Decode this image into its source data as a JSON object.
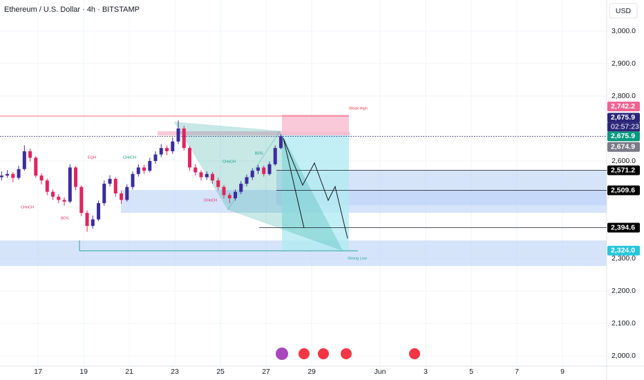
{
  "header": {
    "title": "Ethereum / U.S. Dollar · 4h · BITSTAMP",
    "currency": "USD"
  },
  "chart_data": {
    "type": "candlestick",
    "x": [
      15.4,
      15.65,
      15.9,
      16.15,
      16.4,
      16.65,
      16.9,
      17.15,
      17.4,
      17.65,
      17.9,
      18.15,
      18.4,
      18.65,
      18.9,
      19.15,
      19.4,
      19.65,
      19.9,
      20.15,
      20.4,
      20.65,
      20.9,
      21.15,
      21.4,
      21.65,
      21.9,
      22.15,
      22.4,
      22.65,
      22.9,
      23.15,
      23.4,
      23.65,
      23.9,
      24.15,
      24.4,
      24.65,
      24.9,
      25.15,
      25.4,
      25.65,
      25.9,
      26.15,
      26.4,
      26.65,
      26.9,
      27.15,
      27.4,
      27.65
    ],
    "open": [
      2550,
      2555,
      2560,
      2548,
      2575,
      2630,
      2610,
      2555,
      2540,
      2505,
      2490,
      2480,
      2475,
      2580,
      2520,
      2440,
      2400,
      2420,
      2470,
      2530,
      2545,
      2500,
      2480,
      2520,
      2560,
      2580,
      2570,
      2600,
      2620,
      2640,
      2630,
      2660,
      2700,
      2640,
      2580,
      2565,
      2550,
      2560,
      2540,
      2520,
      2495,
      2485,
      2505,
      2530,
      2550,
      2570,
      2580,
      2560,
      2590,
      2640
    ],
    "high": [
      2568,
      2572,
      2566,
      2585,
      2648,
      2638,
      2615,
      2562,
      2546,
      2512,
      2498,
      2488,
      2590,
      2584,
      2525,
      2448,
      2432,
      2478,
      2540,
      2556,
      2550,
      2508,
      2528,
      2568,
      2590,
      2588,
      2610,
      2630,
      2652,
      2648,
      2672,
      2725,
      2708,
      2646,
      2590,
      2572,
      2568,
      2566,
      2548,
      2526,
      2502,
      2512,
      2538,
      2558,
      2578,
      2588,
      2586,
      2598,
      2648,
      2682
    ],
    "low": [
      2540,
      2548,
      2535,
      2542,
      2570,
      2598,
      2548,
      2528,
      2495,
      2480,
      2470,
      2462,
      2470,
      2510,
      2430,
      2382,
      2392,
      2415,
      2462,
      2522,
      2490,
      2468,
      2475,
      2512,
      2552,
      2560,
      2565,
      2592,
      2612,
      2618,
      2622,
      2652,
      2632,
      2570,
      2555,
      2540,
      2542,
      2530,
      2510,
      2485,
      2470,
      2478,
      2498,
      2522,
      2542,
      2560,
      2552,
      2555,
      2585,
      2636
    ],
    "close": [
      2555,
      2560,
      2548,
      2575,
      2630,
      2610,
      2555,
      2540,
      2505,
      2490,
      2480,
      2475,
      2580,
      2520,
      2440,
      2400,
      2420,
      2470,
      2530,
      2545,
      2500,
      2480,
      2520,
      2560,
      2580,
      2570,
      2600,
      2620,
      2640,
      2630,
      2660,
      2700,
      2640,
      2580,
      2565,
      2550,
      2560,
      2540,
      2520,
      2495,
      2485,
      2505,
      2530,
      2550,
      2570,
      2580,
      2560,
      2590,
      2640,
      2676
    ],
    "up_color": "#3b2c9e",
    "down_color": "#e0245e",
    "xlim": [
      15.33,
      41.94
    ],
    "ylim": [
      1968.1,
      3095.7
    ],
    "xticks": [
      17,
      19,
      21,
      23,
      25,
      27,
      29,
      {
        "value": 32,
        "label": "Jun"
      },
      {
        "value": 34,
        "label": "3"
      },
      {
        "value": 36,
        "label": "5"
      },
      {
        "value": 38,
        "label": "7"
      },
      {
        "value": 40,
        "label": "9"
      }
    ],
    "yticks": [
      {
        "value": 3000,
        "label": "3,000.0"
      },
      {
        "value": 2900,
        "label": "2,900.0"
      },
      {
        "value": 2800,
        "label": "2,800.0"
      },
      {
        "value": 2600,
        "label": "2,600.0"
      },
      {
        "value": 2300,
        "label": "2,300.0"
      },
      {
        "value": 2200,
        "label": "2,200.0"
      },
      {
        "value": 2100,
        "label": "2,100.0"
      },
      {
        "value": 2000,
        "label": "2,000.0"
      }
    ],
    "grid": true,
    "price_labels": [
      {
        "value": 2742.2,
        "label": "2,742.2",
        "color": "#f06292"
      },
      {
        "value": 2675.9,
        "label": "2,675.9",
        "color": "#2a2577"
      },
      {
        "value": 2675.9,
        "label": "2,675.9",
        "color": "#089981"
      },
      {
        "value": 2674.9,
        "label": "2,674.9",
        "color": "#787b86"
      },
      {
        "value": 2571.2,
        "label": "2,571.2",
        "color": "#000000"
      },
      {
        "value": 2509.6,
        "label": "2,509.6",
        "color": "#000000"
      },
      {
        "value": 2394.6,
        "label": "2,394.6",
        "color": "#000000"
      },
      {
        "value": 2324.0,
        "label": "2,324.0",
        "color": "#26c6da"
      }
    ],
    "countdown": "02:57:23",
    "annotations": [
      "Weak High",
      "Strong Low",
      "EQH",
      "CHoCH",
      "CHoCH",
      "BOS",
      "CHoCH",
      "BOS",
      "CHoCH"
    ]
  }
}
